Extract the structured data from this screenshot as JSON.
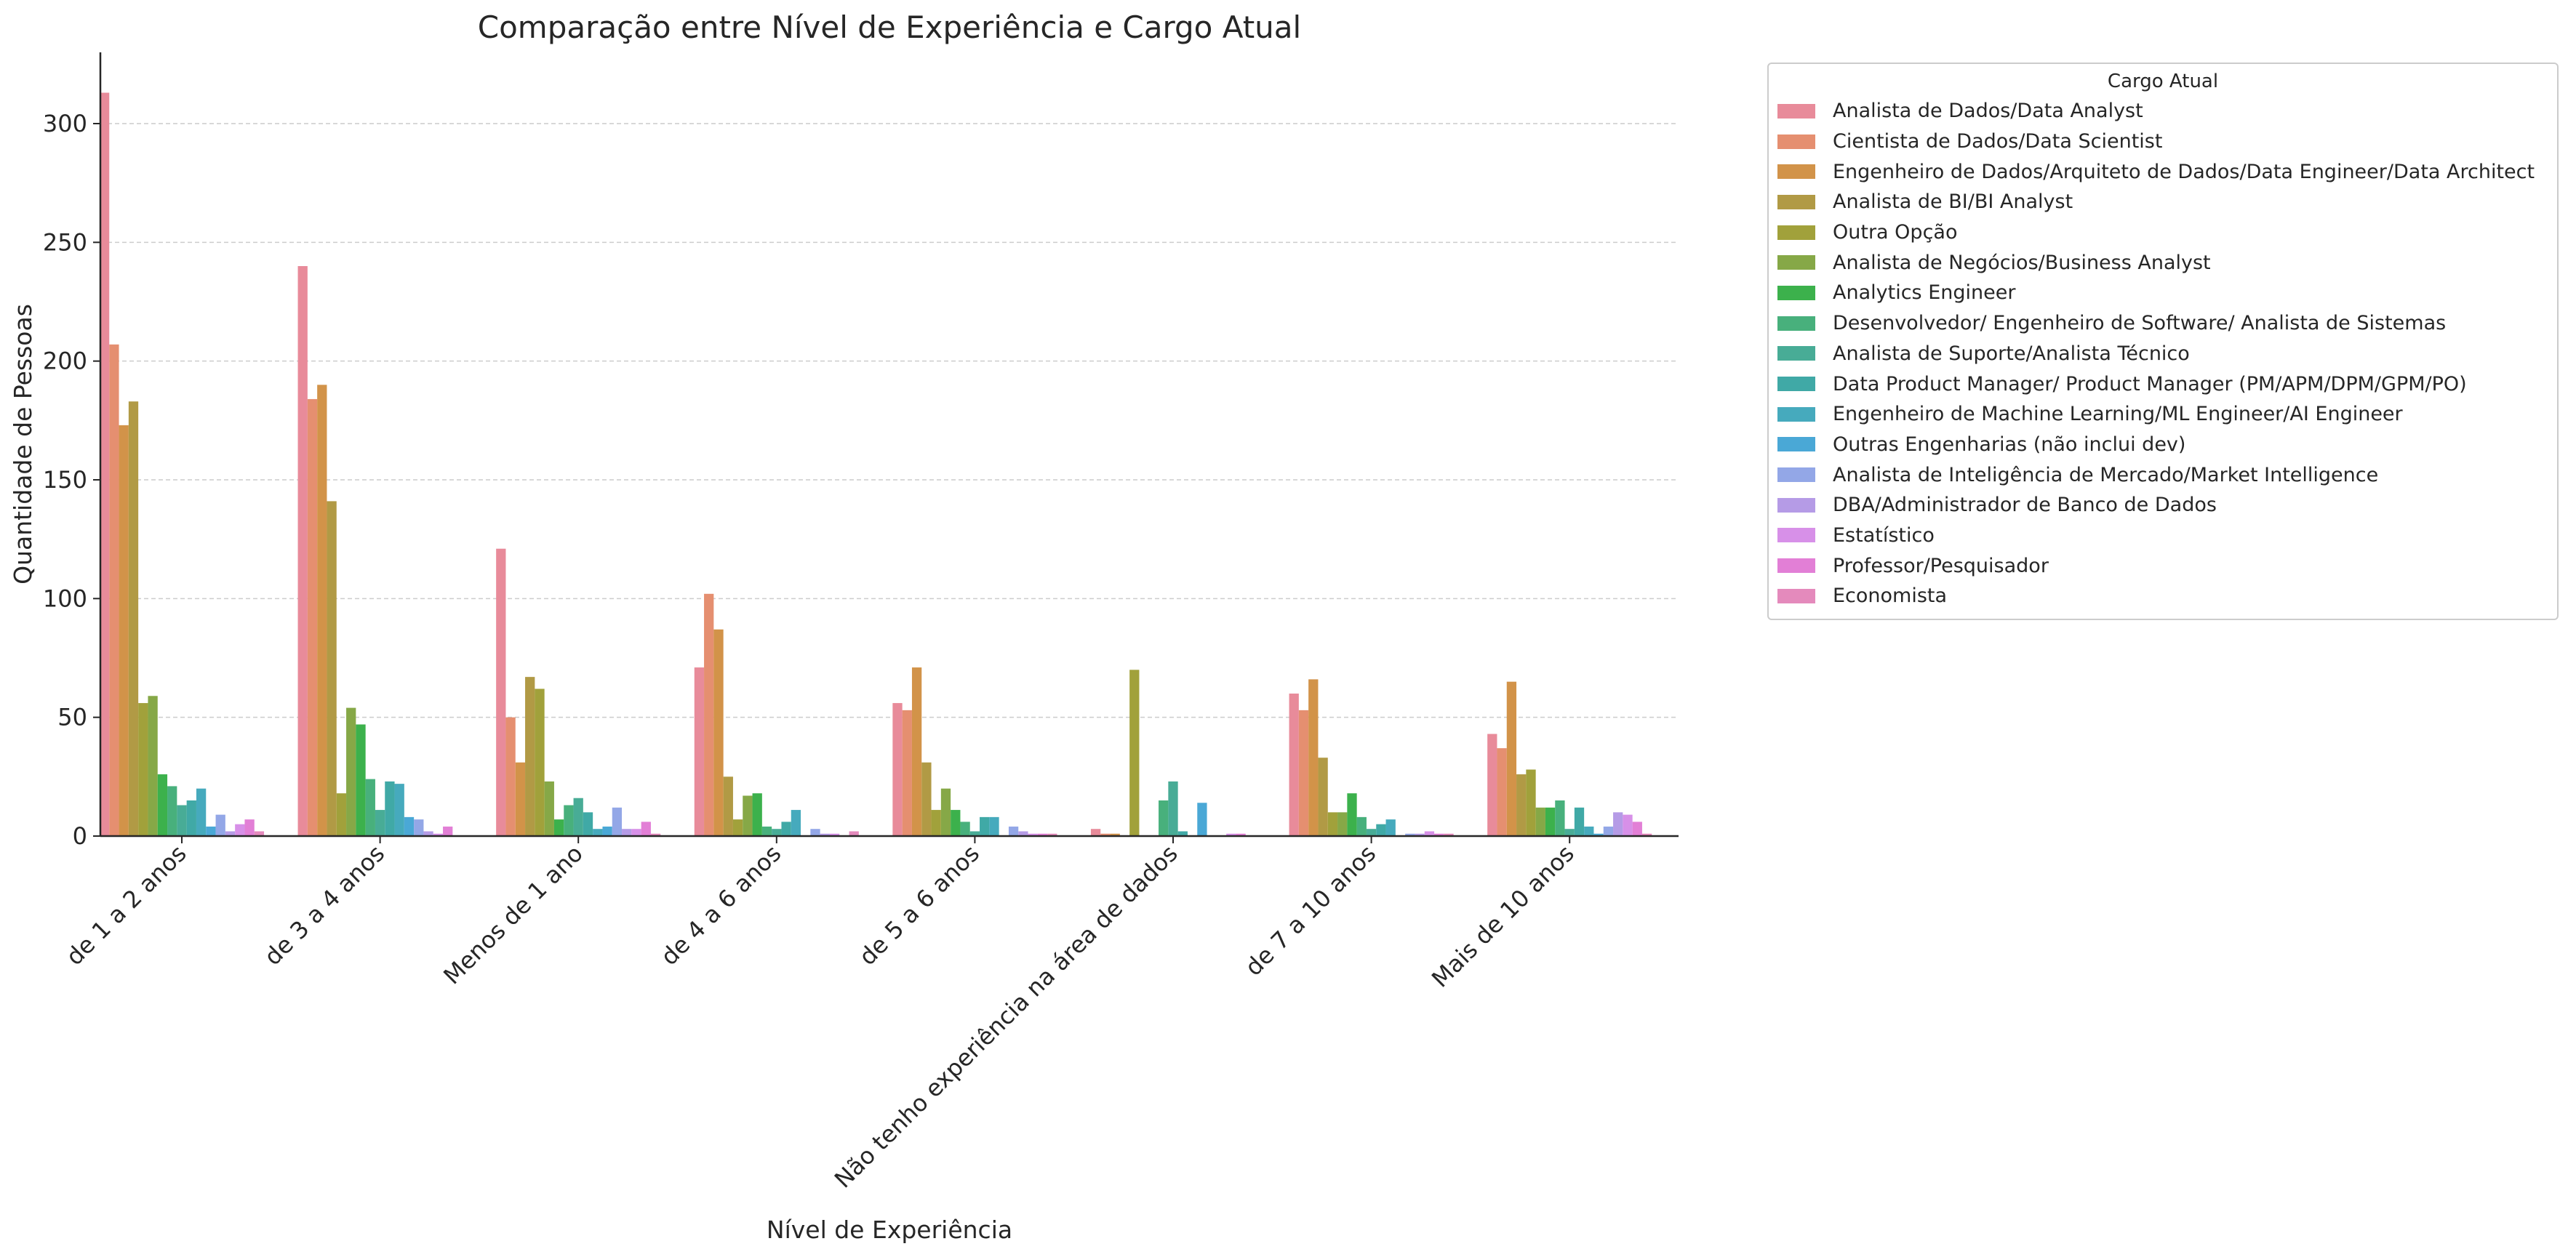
{
  "chart_data": {
    "type": "bar",
    "title": "Comparação entre Nível de Experiência e Cargo Atual",
    "xlabel": "Nível de Experiência",
    "ylabel": "Quantidade de Pessoas",
    "ylim": [
      0,
      330
    ],
    "yticks": [
      0,
      50,
      100,
      150,
      200,
      250,
      300
    ],
    "grid": "horizontal dashed",
    "legend_title": "Cargo Atual",
    "legend_position": "outside right, top",
    "categories": [
      "de 1 a 2 anos",
      "de 3 a 4 anos",
      "Menos de 1 ano",
      "de 4 a 6 anos",
      "de 5 a 6 anos",
      "Não tenho experiência na área de dados",
      "de 7 a 10 anos",
      "Mais de 10 anos"
    ],
    "series": [
      {
        "name": "Analista de Dados/Data Analyst",
        "color": "#e88b9a",
        "values": [
          313,
          240,
          121,
          71,
          56,
          3,
          60,
          43
        ]
      },
      {
        "name": "Cientista de Dados/Data Scientist",
        "color": "#e58f70",
        "values": [
          207,
          184,
          50,
          102,
          53,
          1,
          53,
          37
        ]
      },
      {
        "name": "Engenheiro de Dados/Arquiteto de Dados/Data Engineer/Data Architect",
        "color": "#d29349",
        "values": [
          173,
          190,
          31,
          87,
          71,
          1,
          66,
          65
        ]
      },
      {
        "name": "Analista de BI/BI Analyst",
        "color": "#b19a45",
        "values": [
          183,
          141,
          67,
          25,
          31,
          0,
          33,
          26
        ]
      },
      {
        "name": "Outra Opção",
        "color": "#a1a13b",
        "values": [
          56,
          18,
          62,
          7,
          11,
          70,
          10,
          28
        ]
      },
      {
        "name": "Analista de Negócios/Business Analyst",
        "color": "#86a847",
        "values": [
          59,
          54,
          23,
          17,
          20,
          0,
          10,
          12
        ]
      },
      {
        "name": "Analytics Engineer",
        "color": "#3cb14c",
        "values": [
          26,
          47,
          7,
          18,
          11,
          0,
          18,
          12
        ]
      },
      {
        "name": "Desenvolvedor/ Engenheiro de Software/ Analista de Sistemas",
        "color": "#48b07c",
        "values": [
          21,
          24,
          13,
          4,
          6,
          15,
          8,
          15
        ]
      },
      {
        "name": "Analista de Suporte/Analista Técnico",
        "color": "#48ac96",
        "values": [
          13,
          11,
          16,
          3,
          2,
          23,
          3,
          3
        ]
      },
      {
        "name": "Data Product Manager/ Product Manager (PM/APM/DPM/GPM/PO)",
        "color": "#40a9a6",
        "values": [
          15,
          23,
          10,
          6,
          8,
          2,
          5,
          12
        ]
      },
      {
        "name": "Engenheiro de Machine Learning/ML Engineer/AI Engineer",
        "color": "#46aabd",
        "values": [
          20,
          22,
          3,
          11,
          8,
          0,
          7,
          4
        ]
      },
      {
        "name": "Outras Engenharias (não inclui dev)",
        "color": "#4aa8d6",
        "values": [
          4,
          8,
          4,
          0,
          0,
          14,
          0,
          1
        ]
      },
      {
        "name": "Analista de Inteligência de Mercado/Market Intelligence",
        "color": "#93a7e7",
        "values": [
          9,
          7,
          12,
          3,
          4,
          0,
          1,
          4
        ]
      },
      {
        "name": "DBA/Administrador de Banco de Dados",
        "color": "#b59be6",
        "values": [
          2,
          2,
          3,
          1,
          2,
          0,
          1,
          10
        ]
      },
      {
        "name": "Estatístico",
        "color": "#d790e8",
        "values": [
          5,
          1,
          3,
          1,
          1,
          1,
          2,
          9
        ]
      },
      {
        "name": "Professor/Pesquisador",
        "color": "#e27fd6",
        "values": [
          7,
          4,
          6,
          0,
          1,
          1,
          1,
          6
        ]
      },
      {
        "name": "Economista",
        "color": "#e48abc",
        "values": [
          2,
          0,
          1,
          2,
          1,
          0,
          1,
          1
        ]
      }
    ]
  }
}
